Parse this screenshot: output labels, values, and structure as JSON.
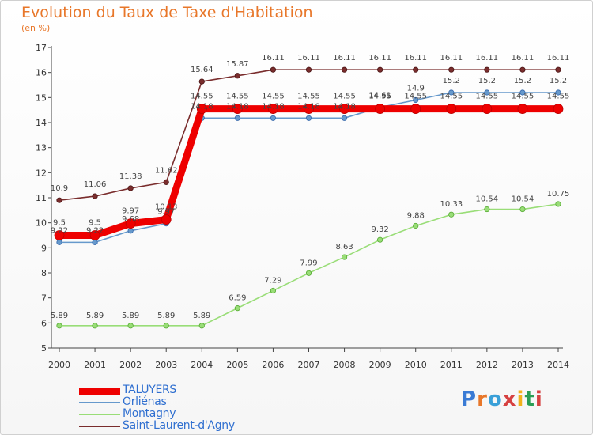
{
  "title": "Evolution du Taux de Taxe d'Habitation",
  "unit": "(en %)",
  "logo": "Proxiti",
  "chart_data": {
    "type": "line",
    "x": [
      "2000",
      "2001",
      "2002",
      "2003",
      "2004",
      "2005",
      "2006",
      "2007",
      "2008",
      "2009",
      "2010",
      "2011",
      "2012",
      "2013",
      "2014"
    ],
    "ylim": [
      5,
      17
    ],
    "yticks": [
      5,
      6,
      7,
      8,
      9,
      10,
      11,
      12,
      13,
      14,
      15,
      16,
      17
    ],
    "grid": false,
    "legend_position": "bottom-left",
    "series": [
      {
        "name": "TALUYERS",
        "color": "#ee0000",
        "values": [
          9.5,
          9.5,
          9.97,
          10.13,
          14.55,
          14.55,
          14.55,
          14.55,
          14.55,
          14.55,
          14.55,
          14.55,
          14.55,
          14.55,
          14.55
        ]
      },
      {
        "name": "Orliénas",
        "color": "#6699cc",
        "values": [
          9.22,
          9.22,
          9.68,
          9.97,
          14.18,
          14.18,
          14.18,
          14.18,
          14.18,
          14.61,
          14.9,
          15.2,
          15.2,
          15.2,
          15.2
        ]
      },
      {
        "name": "Montagny",
        "color": "#99dd77",
        "values": [
          5.89,
          5.89,
          5.89,
          5.89,
          5.89,
          6.59,
          7.29,
          7.99,
          8.63,
          9.32,
          9.88,
          10.33,
          10.54,
          10.54,
          10.75
        ]
      },
      {
        "name": "Saint-Laurent-d'Agny",
        "color": "#7a2d2d",
        "values": [
          10.9,
          11.06,
          11.38,
          11.62,
          15.64,
          15.87,
          16.11,
          16.11,
          16.11,
          16.11,
          16.11,
          16.11,
          16.11,
          16.11,
          16.11
        ]
      }
    ]
  }
}
